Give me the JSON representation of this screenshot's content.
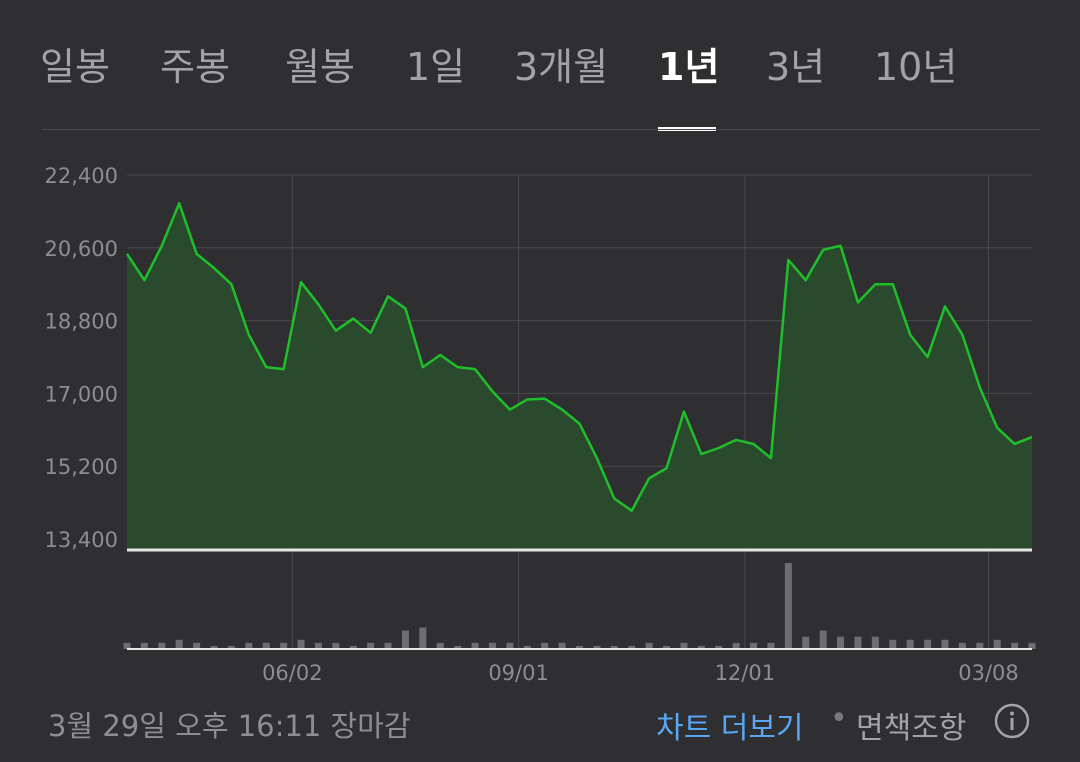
{
  "tabs": [
    {
      "label": "일봉",
      "active": false
    },
    {
      "label": "주봉",
      "active": false
    },
    {
      "label": "월봉",
      "active": false
    },
    {
      "label": "1일",
      "active": false
    },
    {
      "label": "3개월",
      "active": false
    },
    {
      "label": "1년",
      "active": true
    },
    {
      "label": "3년",
      "active": false
    },
    {
      "label": "10년",
      "active": false
    }
  ],
  "footer": {
    "status": "3월 29일 오후 16:11 장마감",
    "more_chart": "차트 더보기",
    "separator": "•",
    "disclaimer": "면책조항",
    "info_icon": "info-circle-icon"
  },
  "colors": {
    "background": "#2f2f32",
    "price_line": "#1fbf2a",
    "price_fill": "#2a4a2e",
    "volume_bar": "#6e6e72",
    "grid": "#4a4a4e",
    "link": "#5aa6f5"
  },
  "chart_data": {
    "type": "area",
    "title": "",
    "xlabel": "",
    "ylabel": "",
    "ylim": [
      13400,
      22400
    ],
    "y_ticks": [
      "22,400",
      "20,600",
      "18,800",
      "17,000",
      "15,200",
      "13,400"
    ],
    "y_tick_values": [
      22400,
      20600,
      18800,
      17000,
      15200,
      13400
    ],
    "x_ticks": [
      "06/02",
      "09/01",
      "12/01",
      "03/08"
    ],
    "x_tick_index": [
      9.5,
      22.5,
      35.5,
      49.5
    ],
    "grid": true,
    "series": [
      {
        "values": [
          20450,
          19800,
          20650,
          21700,
          20450,
          20100,
          19700,
          18450,
          17650,
          17600,
          19750,
          19200,
          18550,
          18850,
          18500,
          19400,
          19100,
          17650,
          17950,
          17650,
          17600,
          17050,
          16600,
          16850,
          16870,
          16600,
          16250,
          15400,
          14400,
          14100,
          14900,
          15150,
          16550,
          15500,
          15650,
          15850,
          15750,
          15400,
          20300,
          19800,
          20550,
          20650,
          19250,
          19700,
          19700,
          18450,
          17900,
          19150,
          18450,
          17150,
          16150,
          15750,
          15920
        ]
      }
    ],
    "volume": [
      2,
      2,
      2,
      3,
      2,
      1,
      1,
      2,
      2,
      2,
      3,
      2,
      2,
      1,
      2,
      2,
      6,
      7,
      2,
      1,
      2,
      2,
      2,
      1,
      2,
      2,
      1,
      1,
      1,
      1,
      2,
      1,
      2,
      1,
      1,
      2,
      2,
      2,
      28,
      4,
      6,
      4,
      4,
      4,
      3,
      3,
      3,
      3,
      2,
      2,
      3,
      2,
      2
    ]
  }
}
